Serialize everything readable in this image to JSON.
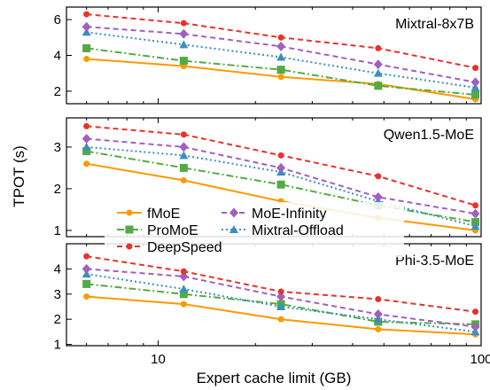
{
  "chart_data": {
    "type": "line",
    "x_scale": "log",
    "xlabel": "Expert cache limit (GB)",
    "ylabel": "TPOT (s)",
    "xlim": [
      5.2,
      100
    ],
    "x_ticks": [
      10,
      100
    ],
    "x_tick_labels": [
      "10",
      "100"
    ],
    "grid": false,
    "legend": {
      "placement": "center-left of middle panel",
      "entries": [
        "fMoE",
        "MoE-Infinity",
        "ProMoE",
        "Mixtral-Offload",
        "DeepSpeed"
      ]
    },
    "styles": {
      "fMoE": {
        "color": "#ff9900",
        "marker": "circle",
        "dash": "solid"
      },
      "ProMoE": {
        "color": "#55aa44",
        "marker": "square",
        "dash": "dashdot"
      },
      "DeepSpeed": {
        "color": "#e8322a",
        "marker": "circle",
        "dash": "dashed"
      },
      "MoE-Infinity": {
        "color": "#a060c0",
        "marker": "diamond",
        "dash": "dashed"
      },
      "Mixtral-Offload": {
        "color": "#3a8fc0",
        "marker": "triangle",
        "dash": "dotted"
      }
    },
    "panels": [
      {
        "title": "Mixtral-8x7B",
        "ylim": [
          1.3,
          6.7
        ],
        "y_ticks": [
          2,
          4,
          6
        ],
        "y_tick_labels": [
          "2",
          "4",
          "6"
        ],
        "x": [
          6,
          12,
          24,
          48,
          96
        ],
        "series": [
          {
            "name": "fMoE",
            "values": [
              3.8,
              3.4,
              2.8,
              2.4,
              1.55
            ]
          },
          {
            "name": "ProMoE",
            "values": [
              4.4,
              3.7,
              3.2,
              2.3,
              1.8
            ]
          },
          {
            "name": "Mixtral-Offload",
            "values": [
              5.3,
              4.6,
              3.9,
              3.0,
              2.2
            ]
          },
          {
            "name": "MoE-Infinity",
            "values": [
              5.6,
              5.2,
              4.5,
              3.5,
              2.5
            ]
          },
          {
            "name": "DeepSpeed",
            "values": [
              6.3,
              5.8,
              5.0,
              4.4,
              3.3
            ]
          }
        ]
      },
      {
        "title": "Qwen1.5-MoE",
        "ylim": [
          0.85,
          3.7
        ],
        "y_ticks": [
          1,
          2,
          3
        ],
        "y_tick_labels": [
          "1",
          "2",
          "3"
        ],
        "x": [
          6,
          12,
          24,
          48,
          96
        ],
        "series": [
          {
            "name": "fMoE",
            "values": [
              2.6,
              2.2,
              1.7,
              1.3,
              1.0
            ]
          },
          {
            "name": "ProMoE",
            "values": [
              2.9,
              2.5,
              2.1,
              1.6,
              1.2
            ]
          },
          {
            "name": "Mixtral-Offload",
            "values": [
              3.0,
              2.8,
              2.4,
              1.7,
              1.1
            ]
          },
          {
            "name": "MoE-Infinity",
            "values": [
              3.2,
              3.0,
              2.5,
              1.8,
              1.4
            ]
          },
          {
            "name": "DeepSpeed",
            "values": [
              3.5,
              3.3,
              2.8,
              2.3,
              1.6
            ]
          }
        ]
      },
      {
        "title": "Phi-3.5-MoE",
        "ylim": [
          0.95,
          5.0
        ],
        "y_ticks": [
          1,
          2,
          3,
          4
        ],
        "y_tick_labels": [
          "1",
          "2",
          "3",
          "4"
        ],
        "x": [
          6,
          12,
          24,
          48,
          96
        ],
        "series": [
          {
            "name": "fMoE",
            "values": [
              2.9,
              2.6,
              2.0,
              1.6,
              1.4
            ]
          },
          {
            "name": "ProMoE",
            "values": [
              3.4,
              3.0,
              2.6,
              1.9,
              1.8
            ]
          },
          {
            "name": "Mixtral-Offload",
            "values": [
              3.8,
              3.2,
              2.5,
              2.0,
              1.5
            ]
          },
          {
            "name": "MoE-Infinity",
            "values": [
              4.0,
              3.7,
              2.9,
              2.2,
              1.7
            ]
          },
          {
            "name": "DeepSpeed",
            "values": [
              4.5,
              3.9,
              3.1,
              2.8,
              2.3
            ]
          }
        ]
      }
    ]
  }
}
